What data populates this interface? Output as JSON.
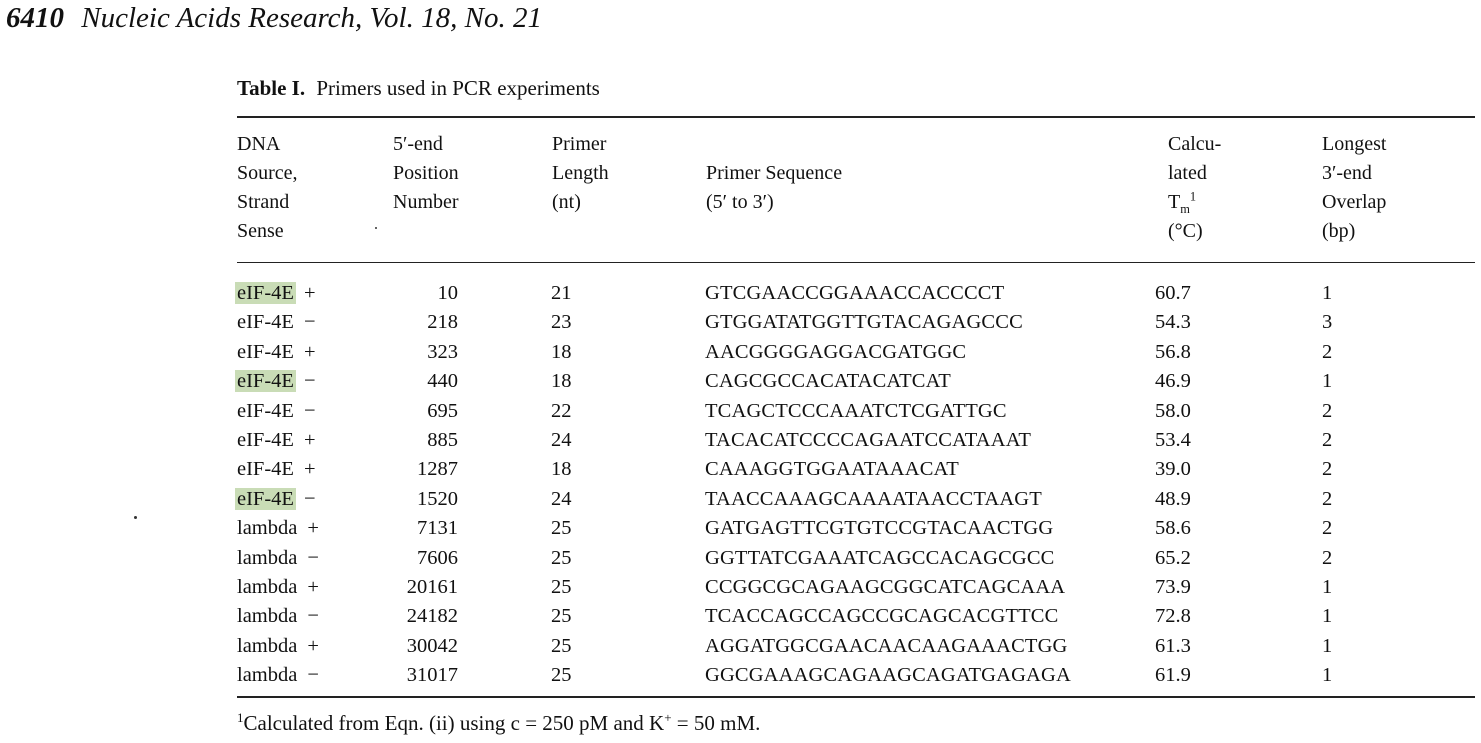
{
  "header": {
    "page_number": "6410",
    "journal": "Nucleic Acids Research, Vol. 18, No. 21"
  },
  "table": {
    "caption_label": "Table I.",
    "caption_text": "Primers used in PCR experiments",
    "columns": [
      {
        "lines": [
          "DNA",
          "Source,",
          "Strand",
          "Sense"
        ]
      },
      {
        "lines": [
          "5′-end",
          "Position",
          "Number"
        ]
      },
      {
        "lines": [
          "Primer",
          "Length",
          "(nt)"
        ]
      },
      {
        "lines": [
          "Primer Sequence",
          "(5′ to 3′)"
        ]
      },
      {
        "lines": [
          "Calcu-",
          "lated",
          "T",
          "(°C)"
        ],
        "tm_sub": "m",
        "tm_sup": "1"
      },
      {
        "lines": [
          "Longest",
          "3′-end",
          "Overlap",
          "(bp)"
        ]
      }
    ],
    "highlight_color": "#c9dcb6",
    "rows": [
      {
        "source": "eIF-4E",
        "sense": "+",
        "position": "10",
        "length": "21",
        "sequence": "GTCGAACCGGAAACCACCCCT",
        "tm": "60.7",
        "overlap": "1",
        "highlighted": true
      },
      {
        "source": "eIF-4E",
        "sense": "−",
        "position": "218",
        "length": "23",
        "sequence": "GTGGATATGGTTGTACAGAGCCC",
        "tm": "54.3",
        "overlap": "3",
        "highlighted": false
      },
      {
        "source": "eIF-4E",
        "sense": "+",
        "position": "323",
        "length": "18",
        "sequence": "AACGGGGAGGACGATGGC",
        "tm": "56.8",
        "overlap": "2",
        "highlighted": false
      },
      {
        "source": "eIF-4E",
        "sense": "−",
        "position": "440",
        "length": "18",
        "sequence": "CAGCGCCACATACATCAT",
        "tm": "46.9",
        "overlap": "1",
        "highlighted": true
      },
      {
        "source": "eIF-4E",
        "sense": "−",
        "position": "695",
        "length": "22",
        "sequence": "TCAGCTCCCAAATCTCGATTGC",
        "tm": "58.0",
        "overlap": "2",
        "highlighted": false
      },
      {
        "source": "eIF-4E",
        "sense": "+",
        "position": "885",
        "length": "24",
        "sequence": "TACACATCCCCAGAATCCATAAAT",
        "tm": "53.4",
        "overlap": "2",
        "highlighted": false
      },
      {
        "source": "eIF-4E",
        "sense": "+",
        "position": "1287",
        "length": "18",
        "sequence": "CAAAGGTGGAATAAACAT",
        "tm": "39.0",
        "overlap": "2",
        "highlighted": false
      },
      {
        "source": "eIF-4E",
        "sense": "−",
        "position": "1520",
        "length": "24",
        "sequence": "TAACCAAAGCAAAATAACCTAAGT",
        "tm": "48.9",
        "overlap": "2",
        "highlighted": true
      },
      {
        "source": "lambda",
        "sense": "+",
        "position": "7131",
        "length": "25",
        "sequence": "GATGAGTTCGTGTCCGTACAACTGG",
        "tm": "58.6",
        "overlap": "2",
        "highlighted": false
      },
      {
        "source": "lambda",
        "sense": "−",
        "position": "7606",
        "length": "25",
        "sequence": "GGTTATCGAAATCAGCCACAGCGCC",
        "tm": "65.2",
        "overlap": "2",
        "highlighted": false
      },
      {
        "source": "lambda",
        "sense": "+",
        "position": "20161",
        "length": "25",
        "sequence": "CCGGCGCAGAAGCGGCATCAGCAAA",
        "tm": "73.9",
        "overlap": "1",
        "highlighted": false
      },
      {
        "source": "lambda",
        "sense": "−",
        "position": "24182",
        "length": "25",
        "sequence": "TCACCAGCCAGCCGCAGCACGTTCC",
        "tm": "72.8",
        "overlap": "1",
        "highlighted": false
      },
      {
        "source": "lambda",
        "sense": "+",
        "position": "30042",
        "length": "25",
        "sequence": "AGGATGGCGAACAACAAGAAACTGG",
        "tm": "61.3",
        "overlap": "1",
        "highlighted": false
      },
      {
        "source": "lambda",
        "sense": "−",
        "position": "31017",
        "length": "25",
        "sequence": "GGCGAAAGCAGAAGCAGATGAGAGA",
        "tm": "61.9",
        "overlap": "1",
        "highlighted": false
      }
    ],
    "footnote": {
      "marker": "1",
      "text_before_k": "Calculated from Eqn. (ii) using c = 250 pM and K",
      "k_sup": "+",
      "text_after_k": " = 50 mM."
    }
  }
}
